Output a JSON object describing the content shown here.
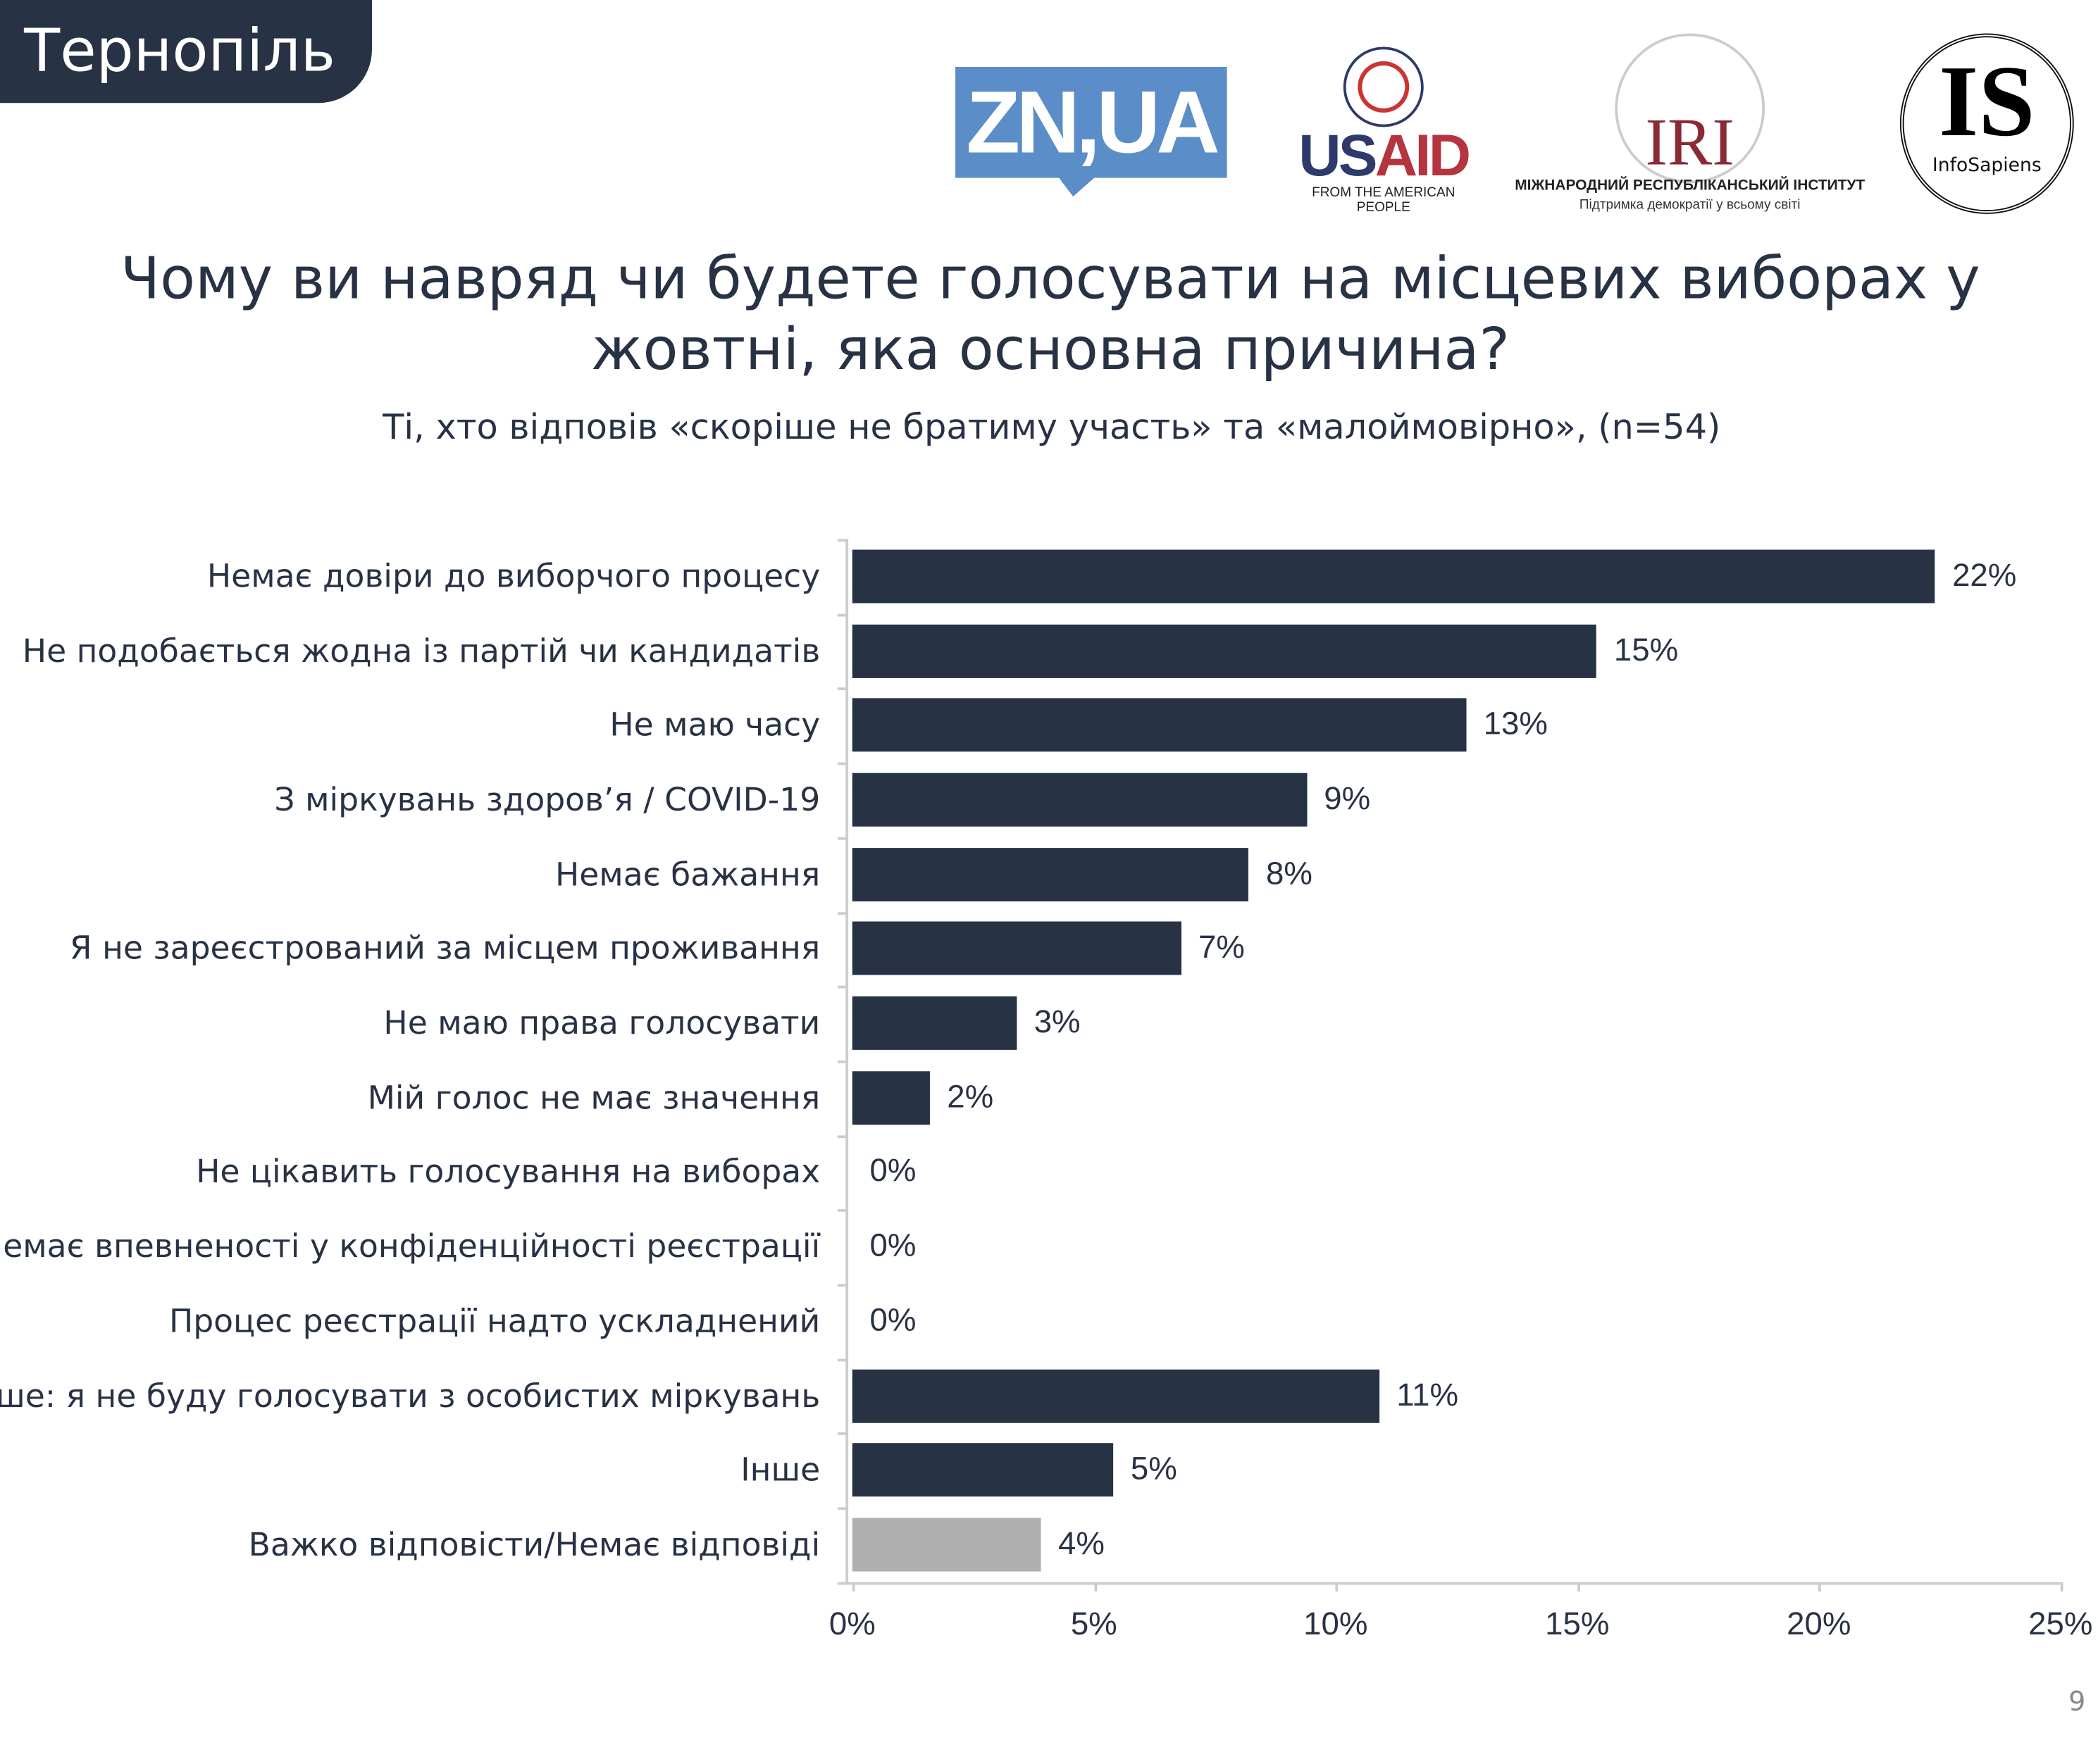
{
  "region_badge": "Тернопіль",
  "logos": {
    "zn": "ZN,UA",
    "usaid": {
      "us": "US",
      "aid": "AID",
      "tagline": "FROM THE AMERICAN PEOPLE"
    },
    "iri": {
      "mark": "IRI",
      "line1": "МІЖНАРОДНИЙ РЕСПУБЛІКАНСЬКИЙ ІНСТИТУТ",
      "line2": "Підтримка демократії у всьому світі"
    },
    "infosapiens": {
      "mark": "IS",
      "name": "InfoSapiens"
    }
  },
  "page_number": "9",
  "chart_data": {
    "type": "bar",
    "orientation": "horizontal",
    "title": "Чому ви навряд чи будете голосувати на місцевих виборах у жовтні, яка основна причина?",
    "subtitle": "Ті, хто відповів «скоріше не братиму участь» та «малоймовірно», (n=54)",
    "categories": [
      "Немає довіри до виборчого процесу",
      "Не подобається жодна із партій чи кандидатів",
      "Не маю часу",
      "З міркувань здоров’я / COVID-19",
      "Немає бажання",
      "Я не зареєстрований за місцем проживання",
      "Не маю права голосувати",
      "Мій голос не має значення",
      "Не цікавить голосування на виборах",
      "Немає впевненості у конфіденційності реєстрації",
      "Процес реєстрації надто ускладнений",
      "Інше: я не буду голосувати з особистих міркувань",
      "Інше",
      "Важко відповісти/Немає відповіді"
    ],
    "values": [
      22.4,
      15.4,
      12.7,
      9.4,
      8.2,
      6.8,
      3.4,
      1.6,
      0,
      0,
      0,
      10.9,
      5.4,
      3.9
    ],
    "data_labels": [
      "22%",
      "15%",
      "13%",
      "9%",
      "8%",
      "7%",
      "3%",
      "2%",
      "0%",
      "0%",
      "0%",
      "11%",
      "5%",
      "4%"
    ],
    "bar_colors": [
      "#283245",
      "#283245",
      "#283245",
      "#283245",
      "#283245",
      "#283245",
      "#283245",
      "#283245",
      "#283245",
      "#283245",
      "#283245",
      "#283245",
      "#283245",
      "#b0b0b0"
    ],
    "xlim": [
      0,
      25
    ],
    "xticks": [
      "0%",
      "5%",
      "10%",
      "15%",
      "20%",
      "25%"
    ],
    "grid": false,
    "legend": "none"
  }
}
